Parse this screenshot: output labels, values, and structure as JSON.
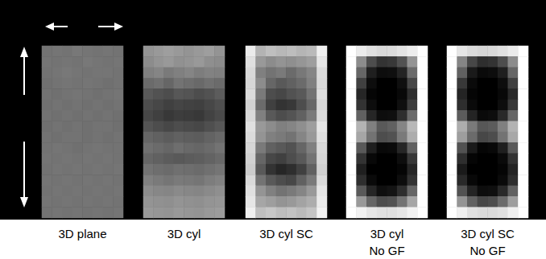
{
  "chart_data": [
    {
      "type": "heatmap",
      "title": "3D plane",
      "value_range": [
        0,
        100
      ],
      "cells": [
        [
          45,
          46,
          45,
          47,
          46,
          45,
          46,
          45
        ],
        [
          46,
          45,
          46,
          45,
          47,
          46,
          45,
          46
        ],
        [
          45,
          46,
          47,
          46,
          45,
          46,
          46,
          45
        ],
        [
          44,
          45,
          46,
          45,
          46,
          45,
          44,
          45
        ],
        [
          45,
          44,
          45,
          46,
          45,
          44,
          45,
          46
        ],
        [
          44,
          45,
          44,
          45,
          44,
          45,
          44,
          45
        ],
        [
          45,
          44,
          45,
          44,
          45,
          44,
          45,
          44
        ],
        [
          44,
          45,
          44,
          45,
          44,
          45,
          45,
          44
        ],
        [
          45,
          44,
          45,
          45,
          44,
          45,
          44,
          45
        ],
        [
          45,
          46,
          45,
          44,
          45,
          46,
          45,
          45
        ],
        [
          46,
          45,
          46,
          45,
          46,
          45,
          46,
          45
        ],
        [
          45,
          46,
          45,
          46,
          45,
          46,
          45,
          46
        ],
        [
          46,
          45,
          46,
          45,
          46,
          45,
          46,
          45
        ],
        [
          45,
          46,
          45,
          46,
          45,
          46,
          45,
          46
        ],
        [
          46,
          45,
          46,
          45,
          46,
          45,
          46,
          45
        ],
        [
          45,
          46,
          45,
          46,
          45,
          46,
          45,
          46
        ]
      ]
    },
    {
      "type": "heatmap",
      "title": "3D cyl",
      "value_range": [
        0,
        100
      ],
      "cells": [
        [
          58,
          60,
          62,
          60,
          58,
          60,
          62,
          58
        ],
        [
          55,
          58,
          60,
          57,
          58,
          60,
          56,
          55
        ],
        [
          50,
          52,
          48,
          50,
          52,
          49,
          51,
          50
        ],
        [
          42,
          44,
          40,
          45,
          43,
          41,
          44,
          42
        ],
        [
          35,
          32,
          30,
          34,
          33,
          30,
          32,
          36
        ],
        [
          30,
          28,
          25,
          27,
          26,
          25,
          28,
          31
        ],
        [
          28,
          25,
          22,
          24,
          23,
          22,
          26,
          29
        ],
        [
          33,
          30,
          28,
          30,
          29,
          28,
          31,
          34
        ],
        [
          40,
          38,
          36,
          38,
          37,
          36,
          39,
          41
        ],
        [
          44,
          42,
          40,
          43,
          41,
          40,
          42,
          45
        ],
        [
          40,
          38,
          36,
          35,
          36,
          37,
          39,
          41
        ],
        [
          45,
          43,
          42,
          44,
          43,
          42,
          44,
          46
        ],
        [
          50,
          48,
          46,
          48,
          47,
          46,
          49,
          51
        ],
        [
          55,
          53,
          52,
          54,
          53,
          52,
          54,
          56
        ],
        [
          58,
          57,
          56,
          58,
          57,
          56,
          58,
          59
        ],
        [
          60,
          59,
          58,
          60,
          59,
          58,
          60,
          61
        ]
      ]
    },
    {
      "type": "heatmap",
      "title": "3D cyl SC",
      "value_range": [
        0,
        100
      ],
      "cells": [
        [
          92,
          70,
          75,
          72,
          74,
          71,
          73,
          94
        ],
        [
          88,
          60,
          55,
          58,
          56,
          59,
          62,
          90
        ],
        [
          85,
          50,
          45,
          48,
          42,
          47,
          52,
          86
        ],
        [
          84,
          55,
          40,
          35,
          38,
          42,
          50,
          85
        ],
        [
          86,
          48,
          30,
          28,
          32,
          35,
          45,
          87
        ],
        [
          82,
          42,
          25,
          20,
          22,
          30,
          40,
          84
        ],
        [
          85,
          50,
          35,
          30,
          33,
          38,
          48,
          86
        ],
        [
          88,
          60,
          55,
          50,
          52,
          56,
          62,
          90
        ],
        [
          86,
          58,
          50,
          48,
          45,
          52,
          60,
          88
        ],
        [
          84,
          48,
          38,
          35,
          32,
          40,
          50,
          85
        ],
        [
          82,
          40,
          28,
          25,
          30,
          35,
          45,
          84
        ],
        [
          80,
          35,
          20,
          15,
          18,
          25,
          38,
          82
        ],
        [
          85,
          45,
          35,
          30,
          28,
          38,
          48,
          86
        ],
        [
          88,
          58,
          50,
          45,
          48,
          52,
          60,
          90
        ],
        [
          90,
          65,
          62,
          58,
          60,
          64,
          68,
          92
        ],
        [
          94,
          75,
          78,
          74,
          76,
          73,
          77,
          95
        ]
      ]
    },
    {
      "type": "heatmap",
      "title": "3D cyl\nNo GF",
      "value_range": [
        0,
        100
      ],
      "cells": [
        [
          100,
          92,
          88,
          85,
          86,
          89,
          93,
          100
        ],
        [
          100,
          55,
          30,
          20,
          22,
          32,
          58,
          100
        ],
        [
          100,
          40,
          12,
          5,
          6,
          14,
          42,
          100
        ],
        [
          100,
          25,
          5,
          0,
          0,
          6,
          28,
          100
        ],
        [
          100,
          15,
          2,
          0,
          0,
          3,
          18,
          100
        ],
        [
          100,
          20,
          5,
          0,
          0,
          6,
          24,
          100
        ],
        [
          100,
          38,
          15,
          5,
          6,
          18,
          42,
          100
        ],
        [
          100,
          70,
          50,
          35,
          38,
          52,
          72,
          100
        ],
        [
          100,
          65,
          45,
          30,
          32,
          48,
          68,
          100
        ],
        [
          100,
          35,
          12,
          3,
          4,
          15,
          38,
          100
        ],
        [
          100,
          20,
          3,
          0,
          0,
          5,
          22,
          100
        ],
        [
          100,
          12,
          0,
          0,
          0,
          2,
          15,
          100
        ],
        [
          100,
          18,
          4,
          0,
          0,
          5,
          20,
          100
        ],
        [
          100,
          35,
          15,
          6,
          8,
          18,
          40,
          100
        ],
        [
          100,
          60,
          40,
          30,
          32,
          45,
          65,
          100
        ],
        [
          100,
          95,
          90,
          88,
          88,
          90,
          95,
          100
        ]
      ]
    },
    {
      "type": "heatmap",
      "title": "3D cyl SC\nNo GF",
      "value_range": [
        0,
        100
      ],
      "cells": [
        [
          100,
          90,
          86,
          84,
          85,
          88,
          92,
          100
        ],
        [
          100,
          52,
          28,
          18,
          20,
          30,
          55,
          100
        ],
        [
          100,
          38,
          10,
          4,
          5,
          12,
          40,
          100
        ],
        [
          100,
          22,
          4,
          0,
          0,
          5,
          25,
          100
        ],
        [
          100,
          14,
          2,
          0,
          0,
          3,
          16,
          100
        ],
        [
          100,
          18,
          4,
          0,
          0,
          5,
          22,
          100
        ],
        [
          100,
          36,
          14,
          4,
          5,
          16,
          40,
          100
        ],
        [
          100,
          68,
          48,
          34,
          36,
          50,
          70,
          100
        ],
        [
          100,
          62,
          42,
          28,
          30,
          45,
          66,
          100
        ],
        [
          100,
          32,
          10,
          2,
          3,
          12,
          35,
          100
        ],
        [
          100,
          18,
          2,
          0,
          0,
          4,
          20,
          100
        ],
        [
          100,
          10,
          0,
          0,
          0,
          2,
          14,
          100
        ],
        [
          100,
          16,
          3,
          0,
          0,
          4,
          18,
          100
        ],
        [
          100,
          32,
          14,
          5,
          6,
          16,
          38,
          100
        ],
        [
          100,
          58,
          38,
          28,
          30,
          42,
          62,
          100
        ],
        [
          100,
          94,
          88,
          86,
          86,
          88,
          94,
          100
        ]
      ]
    }
  ]
}
